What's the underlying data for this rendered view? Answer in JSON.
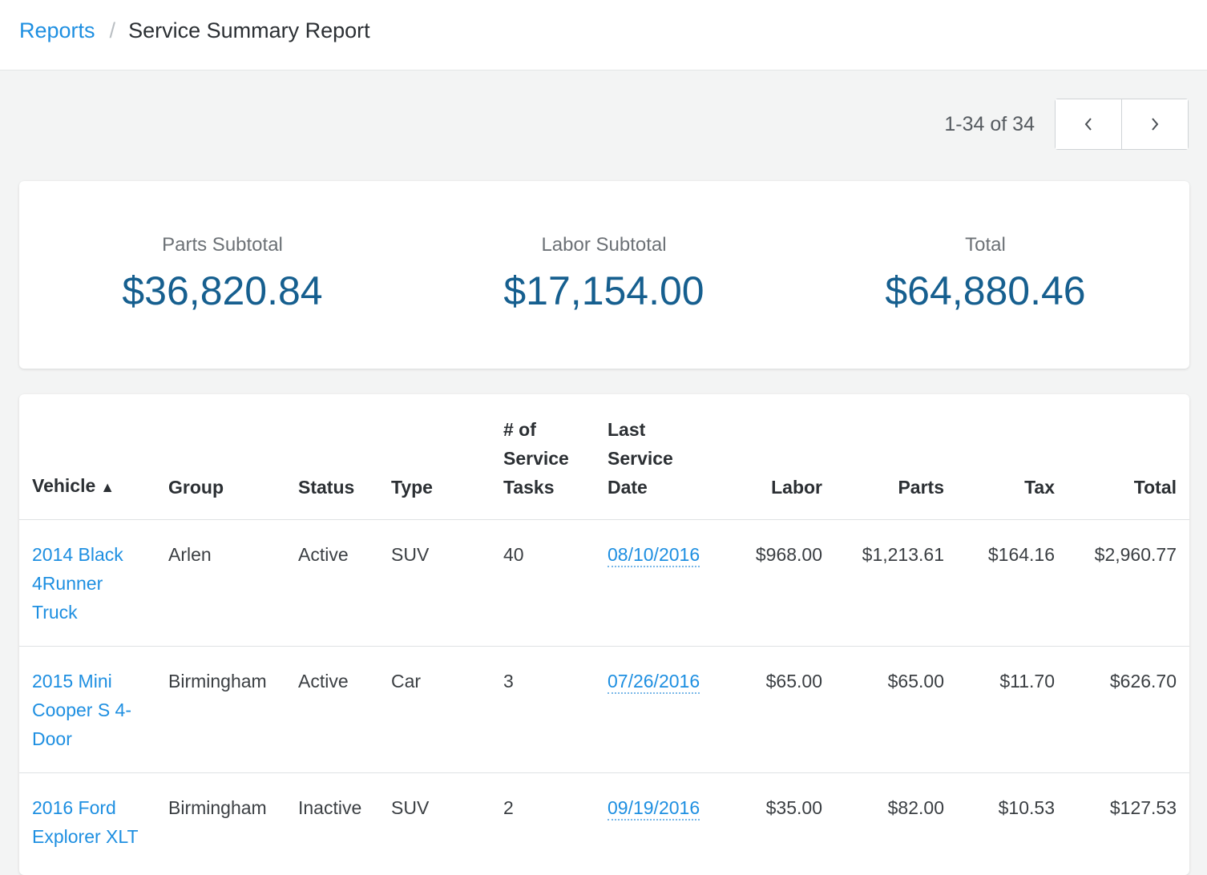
{
  "breadcrumb": {
    "parent": "Reports",
    "separator": "/",
    "current": "Service Summary Report"
  },
  "pagination": {
    "range_text": "1-34 of 34",
    "prev_icon": "chevron-left-icon",
    "next_icon": "chevron-right-icon"
  },
  "summary": {
    "parts_label": "Parts Subtotal",
    "parts_value": "$36,820.84",
    "labor_label": "Labor Subtotal",
    "labor_value": "$17,154.00",
    "total_label": "Total",
    "total_value": "$64,880.46"
  },
  "table": {
    "headers": {
      "vehicle": "Vehicle",
      "vehicle_sort_icon": "▲",
      "group": "Group",
      "status": "Status",
      "type": "Type",
      "tasks": "# of Service Tasks",
      "last_date": "Last Service Date",
      "labor": "Labor",
      "parts": "Parts",
      "tax": "Tax",
      "total": "Total"
    },
    "rows": [
      {
        "vehicle": "2014 Black 4Runner Truck",
        "group": "Arlen",
        "status": "Active",
        "type": "SUV",
        "tasks": "40",
        "last_date": "08/10/2016",
        "labor": "$968.00",
        "parts": "$1,213.61",
        "tax": "$164.16",
        "total": "$2,960.77"
      },
      {
        "vehicle": "2015 Mini Cooper S 4-Door",
        "group": "Birmingham",
        "status": "Active",
        "type": "Car",
        "tasks": "3",
        "last_date": "07/26/2016",
        "labor": "$65.00",
        "parts": "$65.00",
        "tax": "$11.70",
        "total": "$626.70"
      },
      {
        "vehicle": "2016 Ford Explorer XLT",
        "group": "Birmingham",
        "status": "Inactive",
        "type": "SUV",
        "tasks": "2",
        "last_date": "09/19/2016",
        "labor": "$35.00",
        "parts": "$82.00",
        "tax": "$10.53",
        "total": "$127.53"
      }
    ]
  },
  "colors": {
    "link": "#1e8fe1",
    "summary_value": "#165f8f",
    "page_background": "#f3f4f4"
  }
}
